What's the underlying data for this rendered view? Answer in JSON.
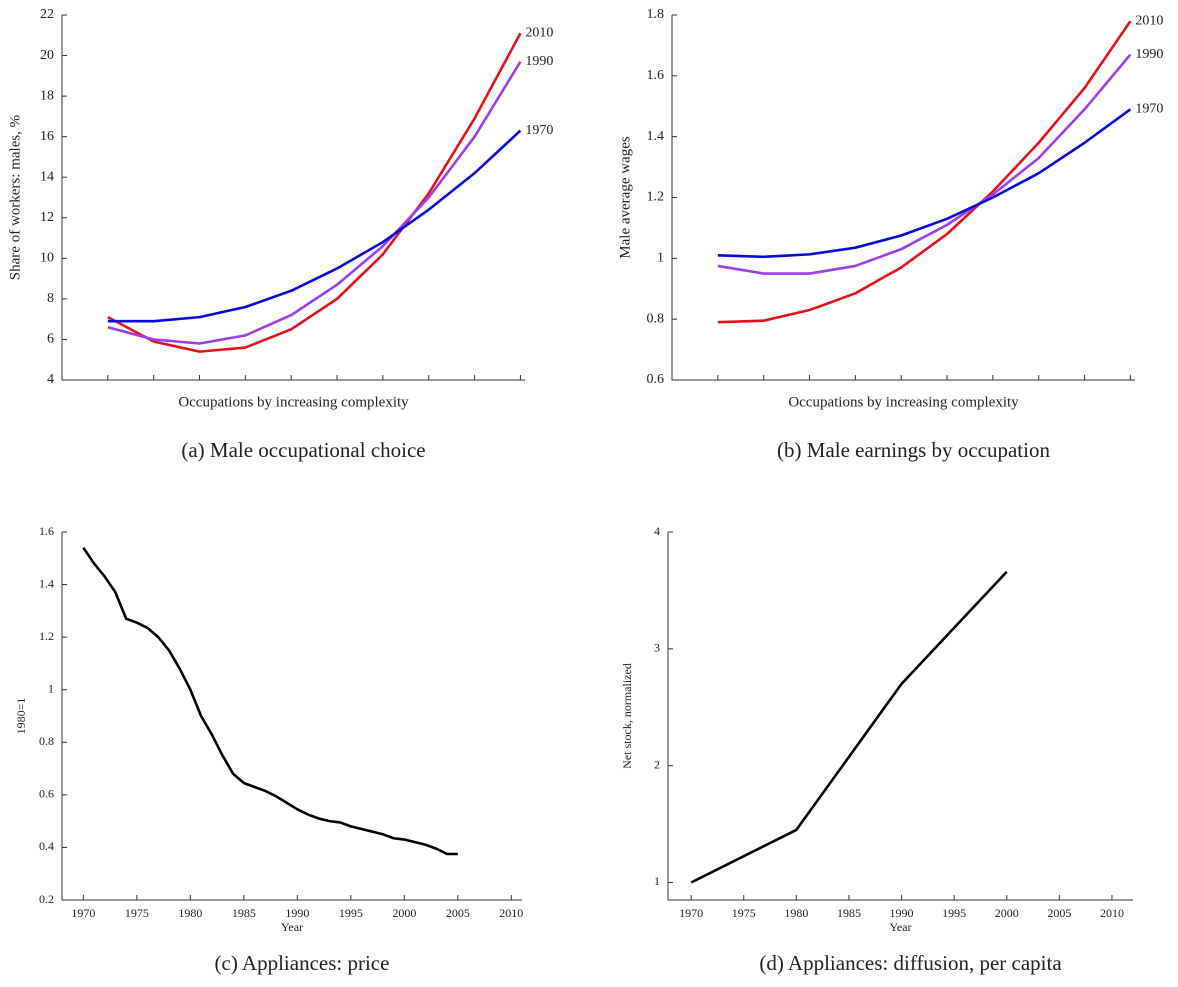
{
  "chart_data": [
    {
      "type": "line",
      "caption": "(a) Male occupational choice",
      "xlabel": "Occupations by increasing complexity",
      "ylabel": "Share of workers: males, %",
      "categories": [
        null,
        null,
        null,
        null,
        null,
        null,
        null,
        null,
        null,
        null
      ],
      "ylim": [
        4,
        22
      ],
      "yticks": [
        4,
        6,
        8,
        10,
        12,
        14,
        16,
        18,
        20,
        22
      ],
      "grid": false,
      "end_labels": true,
      "series": [
        {
          "name": "2010",
          "color": "#e8101a",
          "values": [
            7.1,
            5.9,
            5.4,
            5.6,
            6.5,
            8.0,
            10.2,
            13.2,
            16.9,
            21.1
          ]
        },
        {
          "name": "1990",
          "color": "#9b3ff0",
          "values": [
            6.6,
            6.0,
            5.8,
            6.2,
            7.2,
            8.7,
            10.6,
            13.0,
            16.0,
            19.7
          ]
        },
        {
          "name": "1970",
          "color": "#0a0ad8",
          "values": [
            6.9,
            6.9,
            7.1,
            7.6,
            8.4,
            9.5,
            10.8,
            12.4,
            14.2,
            16.3
          ]
        }
      ]
    },
    {
      "type": "line",
      "caption": "(b) Male earnings by occupation",
      "xlabel": "Occupations by increasing complexity",
      "ylabel": "Male average wages",
      "categories": [
        null,
        null,
        null,
        null,
        null,
        null,
        null,
        null,
        null,
        null
      ],
      "ylim": [
        0.6,
        1.8
      ],
      "yticks": [
        0.6,
        0.8,
        1,
        1.2,
        1.4,
        1.6,
        1.8
      ],
      "grid": false,
      "end_labels": true,
      "series": [
        {
          "name": "2010",
          "color": "#e8101a",
          "values": [
            0.79,
            0.795,
            0.83,
            0.885,
            0.97,
            1.08,
            1.22,
            1.38,
            1.56,
            1.78
          ]
        },
        {
          "name": "1990",
          "color": "#9b3ff0",
          "values": [
            0.975,
            0.95,
            0.95,
            0.975,
            1.03,
            1.11,
            1.21,
            1.33,
            1.49,
            1.67
          ]
        },
        {
          "name": "1970",
          "color": "#0a0ad8",
          "values": [
            1.01,
            1.005,
            1.013,
            1.035,
            1.075,
            1.13,
            1.2,
            1.28,
            1.38,
            1.49
          ]
        }
      ]
    },
    {
      "type": "line",
      "caption": "(c) Appliances: price",
      "xlabel": "Year",
      "ylabel": "1980=1",
      "x": [
        1970,
        1971,
        1972,
        1973,
        1974,
        1975,
        1976,
        1977,
        1978,
        1979,
        1980,
        1981,
        1982,
        1983,
        1984,
        1985,
        1986,
        1987,
        1988,
        1989,
        1990,
        1991,
        1992,
        1993,
        1994,
        1995,
        1996,
        1997,
        1998,
        1999,
        2000,
        2001,
        2002,
        2003,
        2004,
        2005
      ],
      "series": [
        {
          "color": "#000000",
          "values": [
            1.54,
            1.48,
            1.43,
            1.37,
            1.27,
            1.255,
            1.235,
            1.2,
            1.15,
            1.08,
            1.0,
            0.9,
            0.83,
            0.75,
            0.68,
            0.645,
            0.63,
            0.615,
            0.595,
            0.57,
            0.545,
            0.525,
            0.51,
            0.5,
            0.495,
            0.48,
            0.47,
            0.46,
            0.45,
            0.435,
            0.43,
            0.42,
            0.41,
            0.395,
            0.375,
            0.375
          ]
        }
      ],
      "xlim": [
        1968,
        2011
      ],
      "xticks": [
        1970,
        1975,
        1980,
        1985,
        1990,
        1995,
        2000,
        2005,
        2010
      ],
      "ylim": [
        0.2,
        1.6
      ],
      "yticks": [
        0.2,
        0.4,
        0.6,
        0.8,
        1,
        1.2,
        1.4,
        1.6
      ],
      "grid": false
    },
    {
      "type": "line",
      "caption": "(d) Appliances: diffusion, per capita",
      "xlabel": "Year",
      "ylabel": "Net stock, normalized",
      "x": [
        1970,
        1980,
        1990,
        2000
      ],
      "series": [
        {
          "color": "#000000",
          "values": [
            1.0,
            1.45,
            2.7,
            3.66
          ]
        }
      ],
      "xlim": [
        1967.8,
        2012
      ],
      "xticks": [
        1970,
        1975,
        1980,
        1985,
        1990,
        1995,
        2000,
        2005,
        2010
      ],
      "ylim": [
        0.85,
        4
      ],
      "yticks": [
        1,
        2,
        3,
        4
      ],
      "grid": false
    }
  ]
}
